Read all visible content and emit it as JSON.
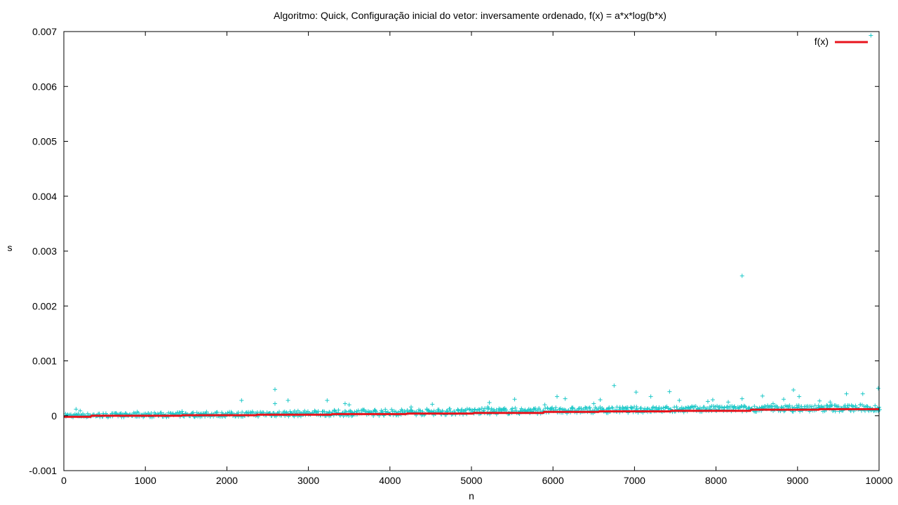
{
  "chart_data": {
    "type": "scatter",
    "title": "Algoritmo: Quick, Configuração inicial do vetor: inversamente ordenado, f(x) = a*x*log(b*x)",
    "xlabel": "n",
    "ylabel": "s",
    "xlim": [
      0,
      10000
    ],
    "ylim": [
      -0.001,
      0.007
    ],
    "x_ticks": [
      0,
      1000,
      2000,
      3000,
      4000,
      5000,
      6000,
      7000,
      8000,
      9000,
      10000
    ],
    "x_tick_labels": [
      "0",
      "1000",
      "2000",
      "3000",
      "4000",
      "5000",
      "6000",
      "7000",
      "8000",
      "9000",
      "10000"
    ],
    "y_ticks": [
      -0.001,
      0,
      0.001,
      0.002,
      0.003,
      0.004,
      0.005,
      0.006,
      0.007
    ],
    "y_tick_labels": [
      "-0.001",
      "0",
      "0.001",
      "0.002",
      "0.003",
      "0.004",
      "0.005",
      "0.006",
      "0.007"
    ],
    "grid": false,
    "legend_position": "top-right",
    "series": [
      {
        "type": "scatter",
        "marker": "plus",
        "color": "#1fc8c8",
        "points": [
          [
            150,
            0.00012
          ],
          [
            200,
            9e-05
          ],
          [
            900,
            7e-05
          ],
          [
            1450,
            8e-05
          ],
          [
            1750,
            7e-05
          ],
          [
            2180,
            0.00028
          ],
          [
            2590,
            0.00048
          ],
          [
            2590,
            0.00022
          ],
          [
            2750,
            0.00028
          ],
          [
            3230,
            0.00028
          ],
          [
            3450,
            0.00022
          ],
          [
            3500,
            0.0002
          ],
          [
            4260,
            0.00016
          ],
          [
            4520,
            0.00021
          ],
          [
            5200,
            0.00016
          ],
          [
            5220,
            0.00024
          ],
          [
            5530,
            0.0003
          ],
          [
            5900,
            0.0002
          ],
          [
            6050,
            0.00035
          ],
          [
            6150,
            0.00031
          ],
          [
            6500,
            0.00022
          ],
          [
            6580,
            0.00029
          ],
          [
            6750,
            0.00055
          ],
          [
            7020,
            0.00043
          ],
          [
            7200,
            0.00035
          ],
          [
            7430,
            0.00044
          ],
          [
            7550,
            0.00028
          ],
          [
            7900,
            0.00026
          ],
          [
            7960,
            0.00029
          ],
          [
            8150,
            0.00025
          ],
          [
            8320,
            0.00255
          ],
          [
            8320,
            0.00031
          ],
          [
            8570,
            0.00036
          ],
          [
            8700,
            0.00022
          ],
          [
            8830,
            0.0003
          ],
          [
            8950,
            0.00047
          ],
          [
            9020,
            0.00035
          ],
          [
            9270,
            0.00027
          ],
          [
            9400,
            0.00025
          ],
          [
            9600,
            0.0004
          ],
          [
            9800,
            0.0004
          ],
          [
            9900,
            0.00693
          ],
          [
            9990,
            0.0005
          ]
        ],
        "noise_band": [
          {
            "x": 0,
            "lo": -3e-05,
            "hi": 4e-05
          },
          {
            "x": 2000,
            "lo": -2e-05,
            "hi": 7e-05
          },
          {
            "x": 4000,
            "lo": 0,
            "hi": 0.00012
          },
          {
            "x": 6000,
            "lo": 4e-05,
            "hi": 0.00015
          },
          {
            "x": 8000,
            "lo": 7e-05,
            "hi": 0.00018
          },
          {
            "x": 10000,
            "lo": 8e-05,
            "hi": 0.00021
          }
        ]
      },
      {
        "name": "f(x)",
        "type": "line",
        "style": "step",
        "color": "#e8141c",
        "breakpoints": [
          [
            0,
            -2e-05
          ],
          [
            330,
            -2e-05
          ],
          [
            340,
            0
          ],
          [
            1440,
            0
          ],
          [
            1450,
            1e-05
          ],
          [
            2360,
            1e-05
          ],
          [
            2370,
            2e-05
          ],
          [
            3280,
            2e-05
          ],
          [
            3290,
            3e-05
          ],
          [
            4200,
            3e-05
          ],
          [
            4210,
            4e-05
          ],
          [
            5020,
            4e-05
          ],
          [
            5030,
            5e-05
          ],
          [
            5880,
            5e-05
          ],
          [
            5890,
            7e-05
          ],
          [
            6560,
            7e-05
          ],
          [
            6570,
            8e-05
          ],
          [
            7440,
            8e-05
          ],
          [
            7450,
            9e-05
          ],
          [
            8420,
            9e-05
          ],
          [
            8430,
            0.00011
          ],
          [
            9260,
            0.00011
          ],
          [
            9270,
            0.00012
          ],
          [
            10000,
            0.00012
          ]
        ]
      }
    ]
  }
}
